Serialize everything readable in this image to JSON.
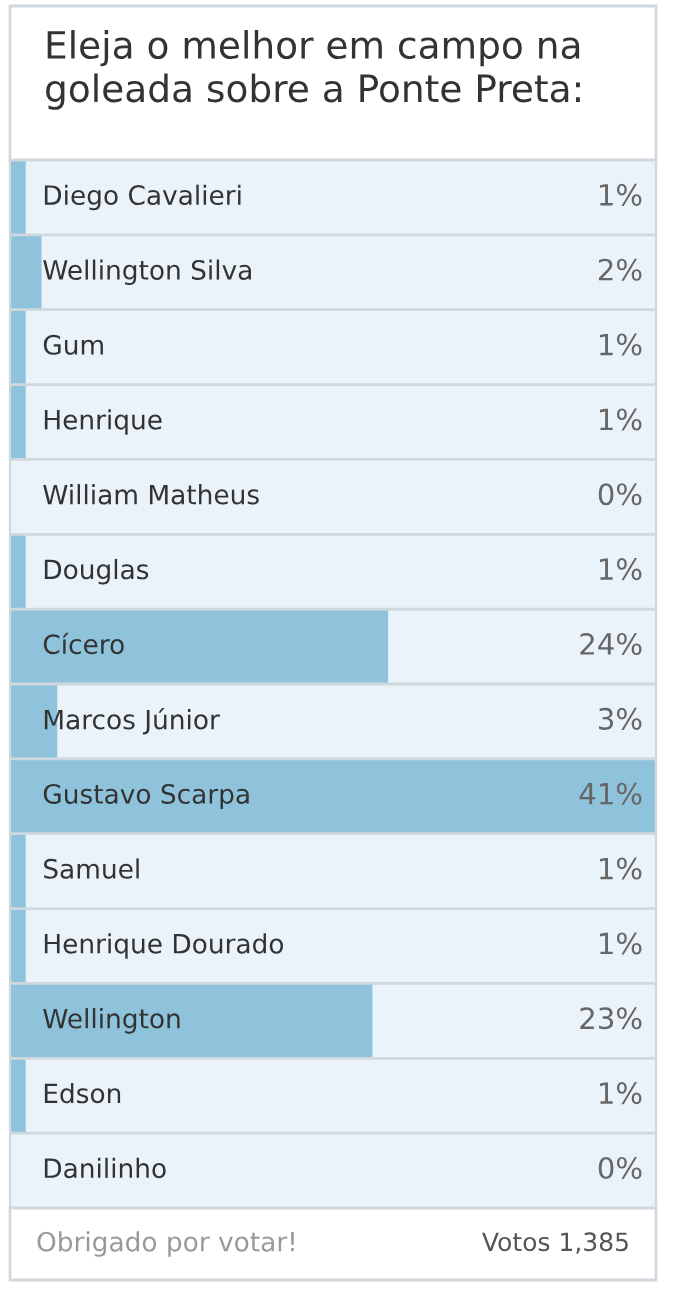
{
  "chart_data": {
    "type": "bar",
    "orientation": "horizontal",
    "title": "Eleja o melhor em campo na goleada sobre a Ponte Preta:",
    "categories": [
      "Diego Cavalieri",
      "Wellington Silva",
      "Gum",
      "Henrique",
      "William Matheus",
      "Douglas",
      "Cícero",
      "Marcos Júnior",
      "Gustavo Scarpa",
      "Samuel",
      "Henrique Dourado",
      "Wellington",
      "Edson",
      "Danilinho"
    ],
    "values": [
      1,
      2,
      1,
      1,
      0,
      1,
      24,
      3,
      41,
      1,
      1,
      23,
      1,
      0
    ],
    "color": "#8fc3dc",
    "value_labels": [
      "1%",
      "2%",
      "1%",
      "1%",
      "0%",
      "1%",
      "24%",
      "3%",
      "41%",
      "1%",
      "1%",
      "23%",
      "1%",
      "0%"
    ],
    "annotations": [
      "Obrigado por votar!",
      "Votos 1,385"
    ]
  }
}
